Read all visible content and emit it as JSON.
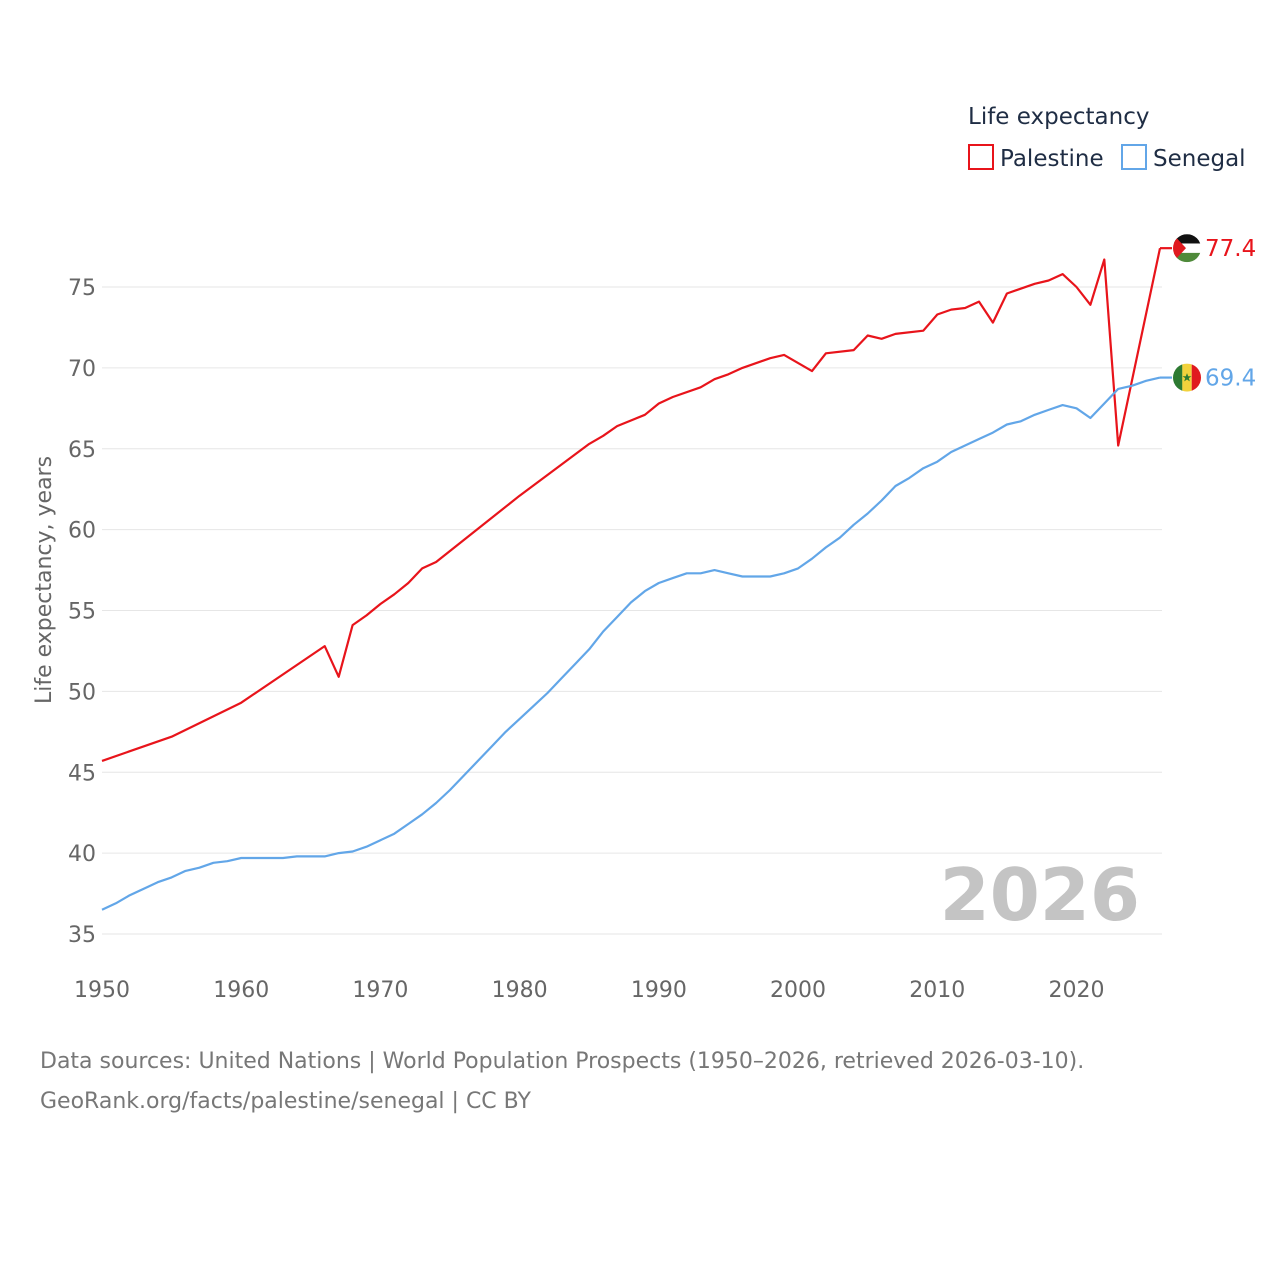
{
  "chart_data": {
    "type": "line",
    "title": "Life expectancy",
    "xlabel": "",
    "ylabel": "Life expectancy, years",
    "xlim": [
      1950,
      2026
    ],
    "ylim": [
      35,
      78
    ],
    "x_ticks": [
      1950,
      1960,
      1970,
      1980,
      1990,
      2000,
      2010,
      2020
    ],
    "y_ticks": [
      35,
      40,
      45,
      50,
      55,
      60,
      65,
      70,
      75
    ],
    "grid": true,
    "legend_position": "top-right",
    "year_label": "2026",
    "series": [
      {
        "name": "Palestine",
        "color": "#e8141b",
        "end_label": "77.4",
        "icon": "palestine-flag-icon",
        "points": [
          [
            1950,
            45.7
          ],
          [
            1955,
            47.2
          ],
          [
            1960,
            49.3
          ],
          [
            1966,
            52.8
          ],
          [
            1967,
            50.9
          ],
          [
            1968,
            54.1
          ],
          [
            1969,
            54.7
          ],
          [
            1970,
            55.4
          ],
          [
            1971,
            56.0
          ],
          [
            1972,
            56.7
          ],
          [
            1973,
            57.6
          ],
          [
            1974,
            58.0
          ],
          [
            1980,
            62.1
          ],
          [
            1985,
            65.3
          ],
          [
            1986,
            65.8
          ],
          [
            1987,
            66.4
          ],
          [
            1989,
            67.1
          ],
          [
            1990,
            67.8
          ],
          [
            1991,
            68.2
          ],
          [
            1993,
            68.8
          ],
          [
            1994,
            69.3
          ],
          [
            1995,
            69.6
          ],
          [
            1996,
            70.0
          ],
          [
            1998,
            70.6
          ],
          [
            1999,
            70.8
          ],
          [
            2001,
            69.8
          ],
          [
            2002,
            70.9
          ],
          [
            2004,
            71.1
          ],
          [
            2005,
            72.0
          ],
          [
            2006,
            71.8
          ],
          [
            2007,
            72.1
          ],
          [
            2009,
            72.3
          ],
          [
            2010,
            73.3
          ],
          [
            2011,
            73.6
          ],
          [
            2012,
            73.7
          ],
          [
            2013,
            74.1
          ],
          [
            2014,
            72.8
          ],
          [
            2015,
            74.6
          ],
          [
            2017,
            75.2
          ],
          [
            2018,
            75.4
          ],
          [
            2019,
            75.8
          ],
          [
            2020,
            75.0
          ],
          [
            2021,
            73.9
          ],
          [
            2022,
            76.7
          ],
          [
            2023,
            65.2
          ],
          [
            2026,
            77.4
          ]
        ]
      },
      {
        "name": "Senegal",
        "color": "#62a6e8",
        "end_label": "69.4",
        "icon": "senegal-flag-icon",
        "points": [
          [
            1950,
            36.5
          ],
          [
            1951,
            36.9
          ],
          [
            1952,
            37.4
          ],
          [
            1953,
            37.8
          ],
          [
            1954,
            38.2
          ],
          [
            1955,
            38.5
          ],
          [
            1956,
            38.9
          ],
          [
            1957,
            39.1
          ],
          [
            1958,
            39.4
          ],
          [
            1959,
            39.5
          ],
          [
            1960,
            39.7
          ],
          [
            1963,
            39.7
          ],
          [
            1964,
            39.8
          ],
          [
            1966,
            39.8
          ],
          [
            1967,
            40.0
          ],
          [
            1968,
            40.1
          ],
          [
            1969,
            40.4
          ],
          [
            1970,
            40.8
          ],
          [
            1971,
            41.2
          ],
          [
            1972,
            41.8
          ],
          [
            1973,
            42.4
          ],
          [
            1974,
            43.1
          ],
          [
            1975,
            43.9
          ],
          [
            1976,
            44.8
          ],
          [
            1977,
            45.7
          ],
          [
            1978,
            46.6
          ],
          [
            1979,
            47.5
          ],
          [
            1980,
            48.3
          ],
          [
            1981,
            49.1
          ],
          [
            1982,
            49.9
          ],
          [
            1983,
            50.8
          ],
          [
            1984,
            51.7
          ],
          [
            1985,
            52.6
          ],
          [
            1986,
            53.7
          ],
          [
            1987,
            54.6
          ],
          [
            1988,
            55.5
          ],
          [
            1989,
            56.2
          ],
          [
            1990,
            56.7
          ],
          [
            1991,
            57.0
          ],
          [
            1992,
            57.3
          ],
          [
            1993,
            57.3
          ],
          [
            1994,
            57.5
          ],
          [
            1995,
            57.3
          ],
          [
            1996,
            57.1
          ],
          [
            1998,
            57.1
          ],
          [
            1999,
            57.3
          ],
          [
            2000,
            57.6
          ],
          [
            2001,
            58.2
          ],
          [
            2002,
            58.9
          ],
          [
            2003,
            59.5
          ],
          [
            2004,
            60.3
          ],
          [
            2005,
            61.0
          ],
          [
            2006,
            61.8
          ],
          [
            2007,
            62.7
          ],
          [
            2008,
            63.2
          ],
          [
            2009,
            63.8
          ],
          [
            2010,
            64.2
          ],
          [
            2011,
            64.8
          ],
          [
            2012,
            65.2
          ],
          [
            2013,
            65.6
          ],
          [
            2014,
            66.0
          ],
          [
            2015,
            66.5
          ],
          [
            2016,
            66.7
          ],
          [
            2017,
            67.1
          ],
          [
            2018,
            67.4
          ],
          [
            2019,
            67.7
          ],
          [
            2020,
            67.5
          ],
          [
            2021,
            66.9
          ],
          [
            2022,
            67.8
          ],
          [
            2023,
            68.7
          ],
          [
            2024,
            68.9
          ],
          [
            2025,
            69.2
          ],
          [
            2026,
            69.4
          ]
        ]
      }
    ]
  },
  "source": {
    "line1": "Data sources: United Nations | World Population Prospects (1950–2026, retrieved 2026-03-10).",
    "line2": "GeoRank.org/facts/palestine/senegal | CC BY"
  }
}
